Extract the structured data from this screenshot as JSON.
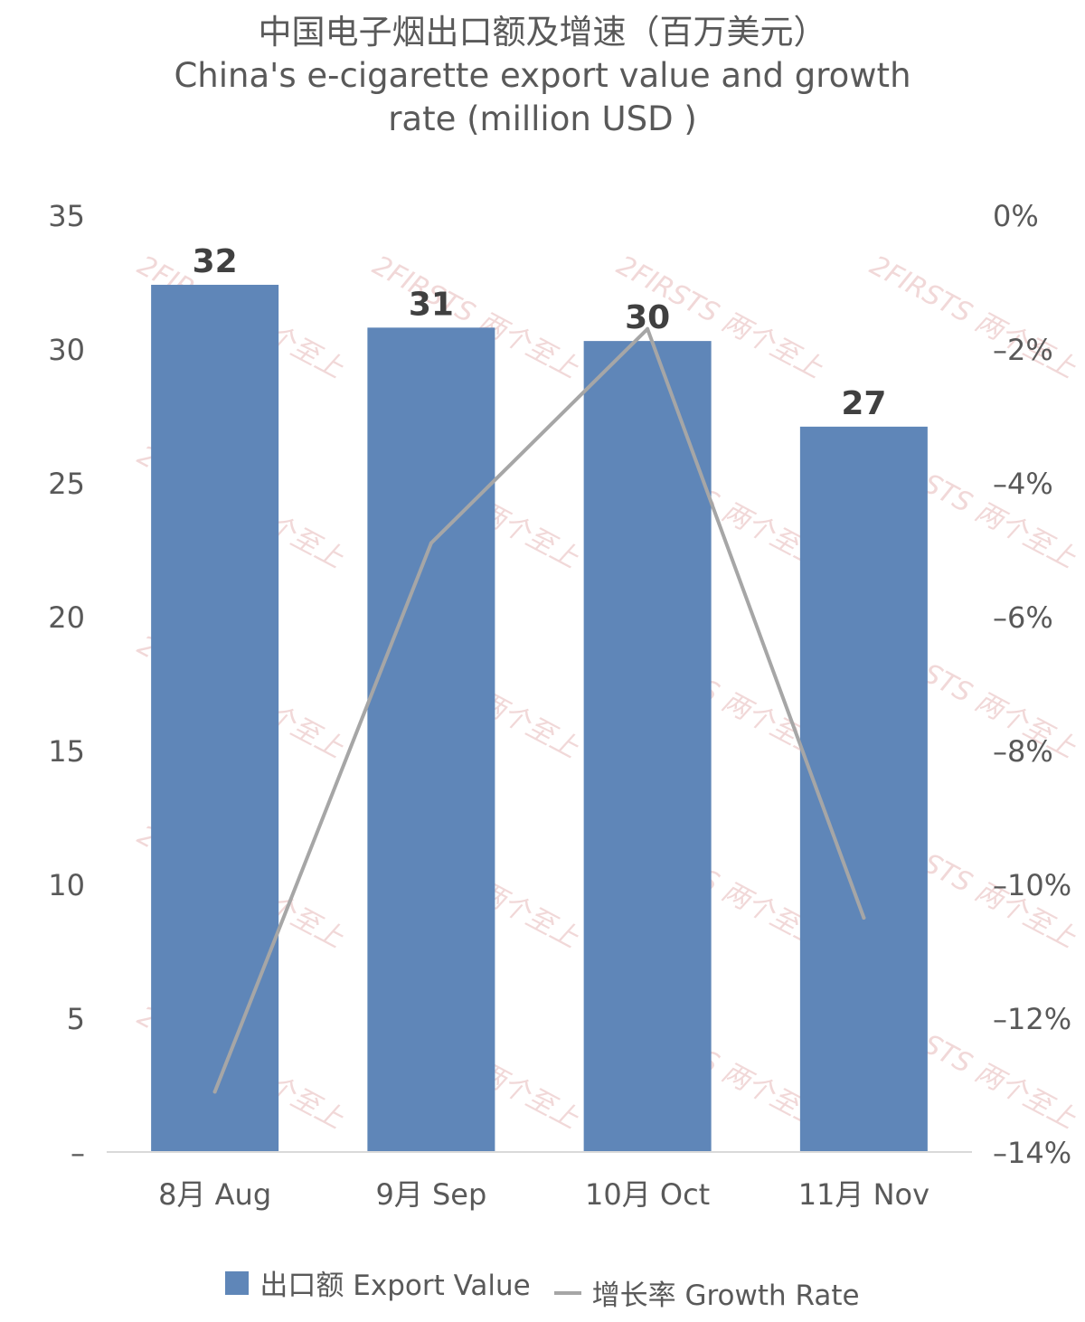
{
  "title_cn": "中国电子烟出口额及增速（百万美元）",
  "title_en_line1": "China's e-cigarette export value and growth",
  "title_en_line2": "rate (million USD )",
  "colors": {
    "bar": "#5f86b8",
    "line": "#a6a6a6",
    "watermark": "#e7b9b9"
  },
  "watermark_text": "2FIRSTS 两个至上",
  "chart_data": {
    "type": "bar",
    "categories": [
      "8月 Aug",
      "9月 Sep",
      "10月 Oct",
      "11月 Nov"
    ],
    "series": [
      {
        "name": "出口额 Export Value",
        "type": "bar",
        "axis": "left",
        "values": [
          32.4,
          30.8,
          30.3,
          27.1
        ],
        "labels": [
          "32",
          "31",
          "30",
          "27"
        ]
      },
      {
        "name": "增长率 Growth Rate",
        "type": "line",
        "axis": "right",
        "values": [
          -13.1,
          -4.9,
          -1.7,
          -10.5
        ]
      }
    ],
    "y_left": {
      "range": [
        0,
        35
      ],
      "ticks": [
        "–",
        "5",
        "10",
        "15",
        "20",
        "25",
        "30",
        "35"
      ]
    },
    "y_right": {
      "range": [
        -14,
        0
      ],
      "ticks": [
        "–14%",
        "–12%",
        "–10%",
        "–8%",
        "–6%",
        "–4%",
        "–2%",
        "0%"
      ]
    },
    "grid": false,
    "legend_position": "bottom"
  }
}
